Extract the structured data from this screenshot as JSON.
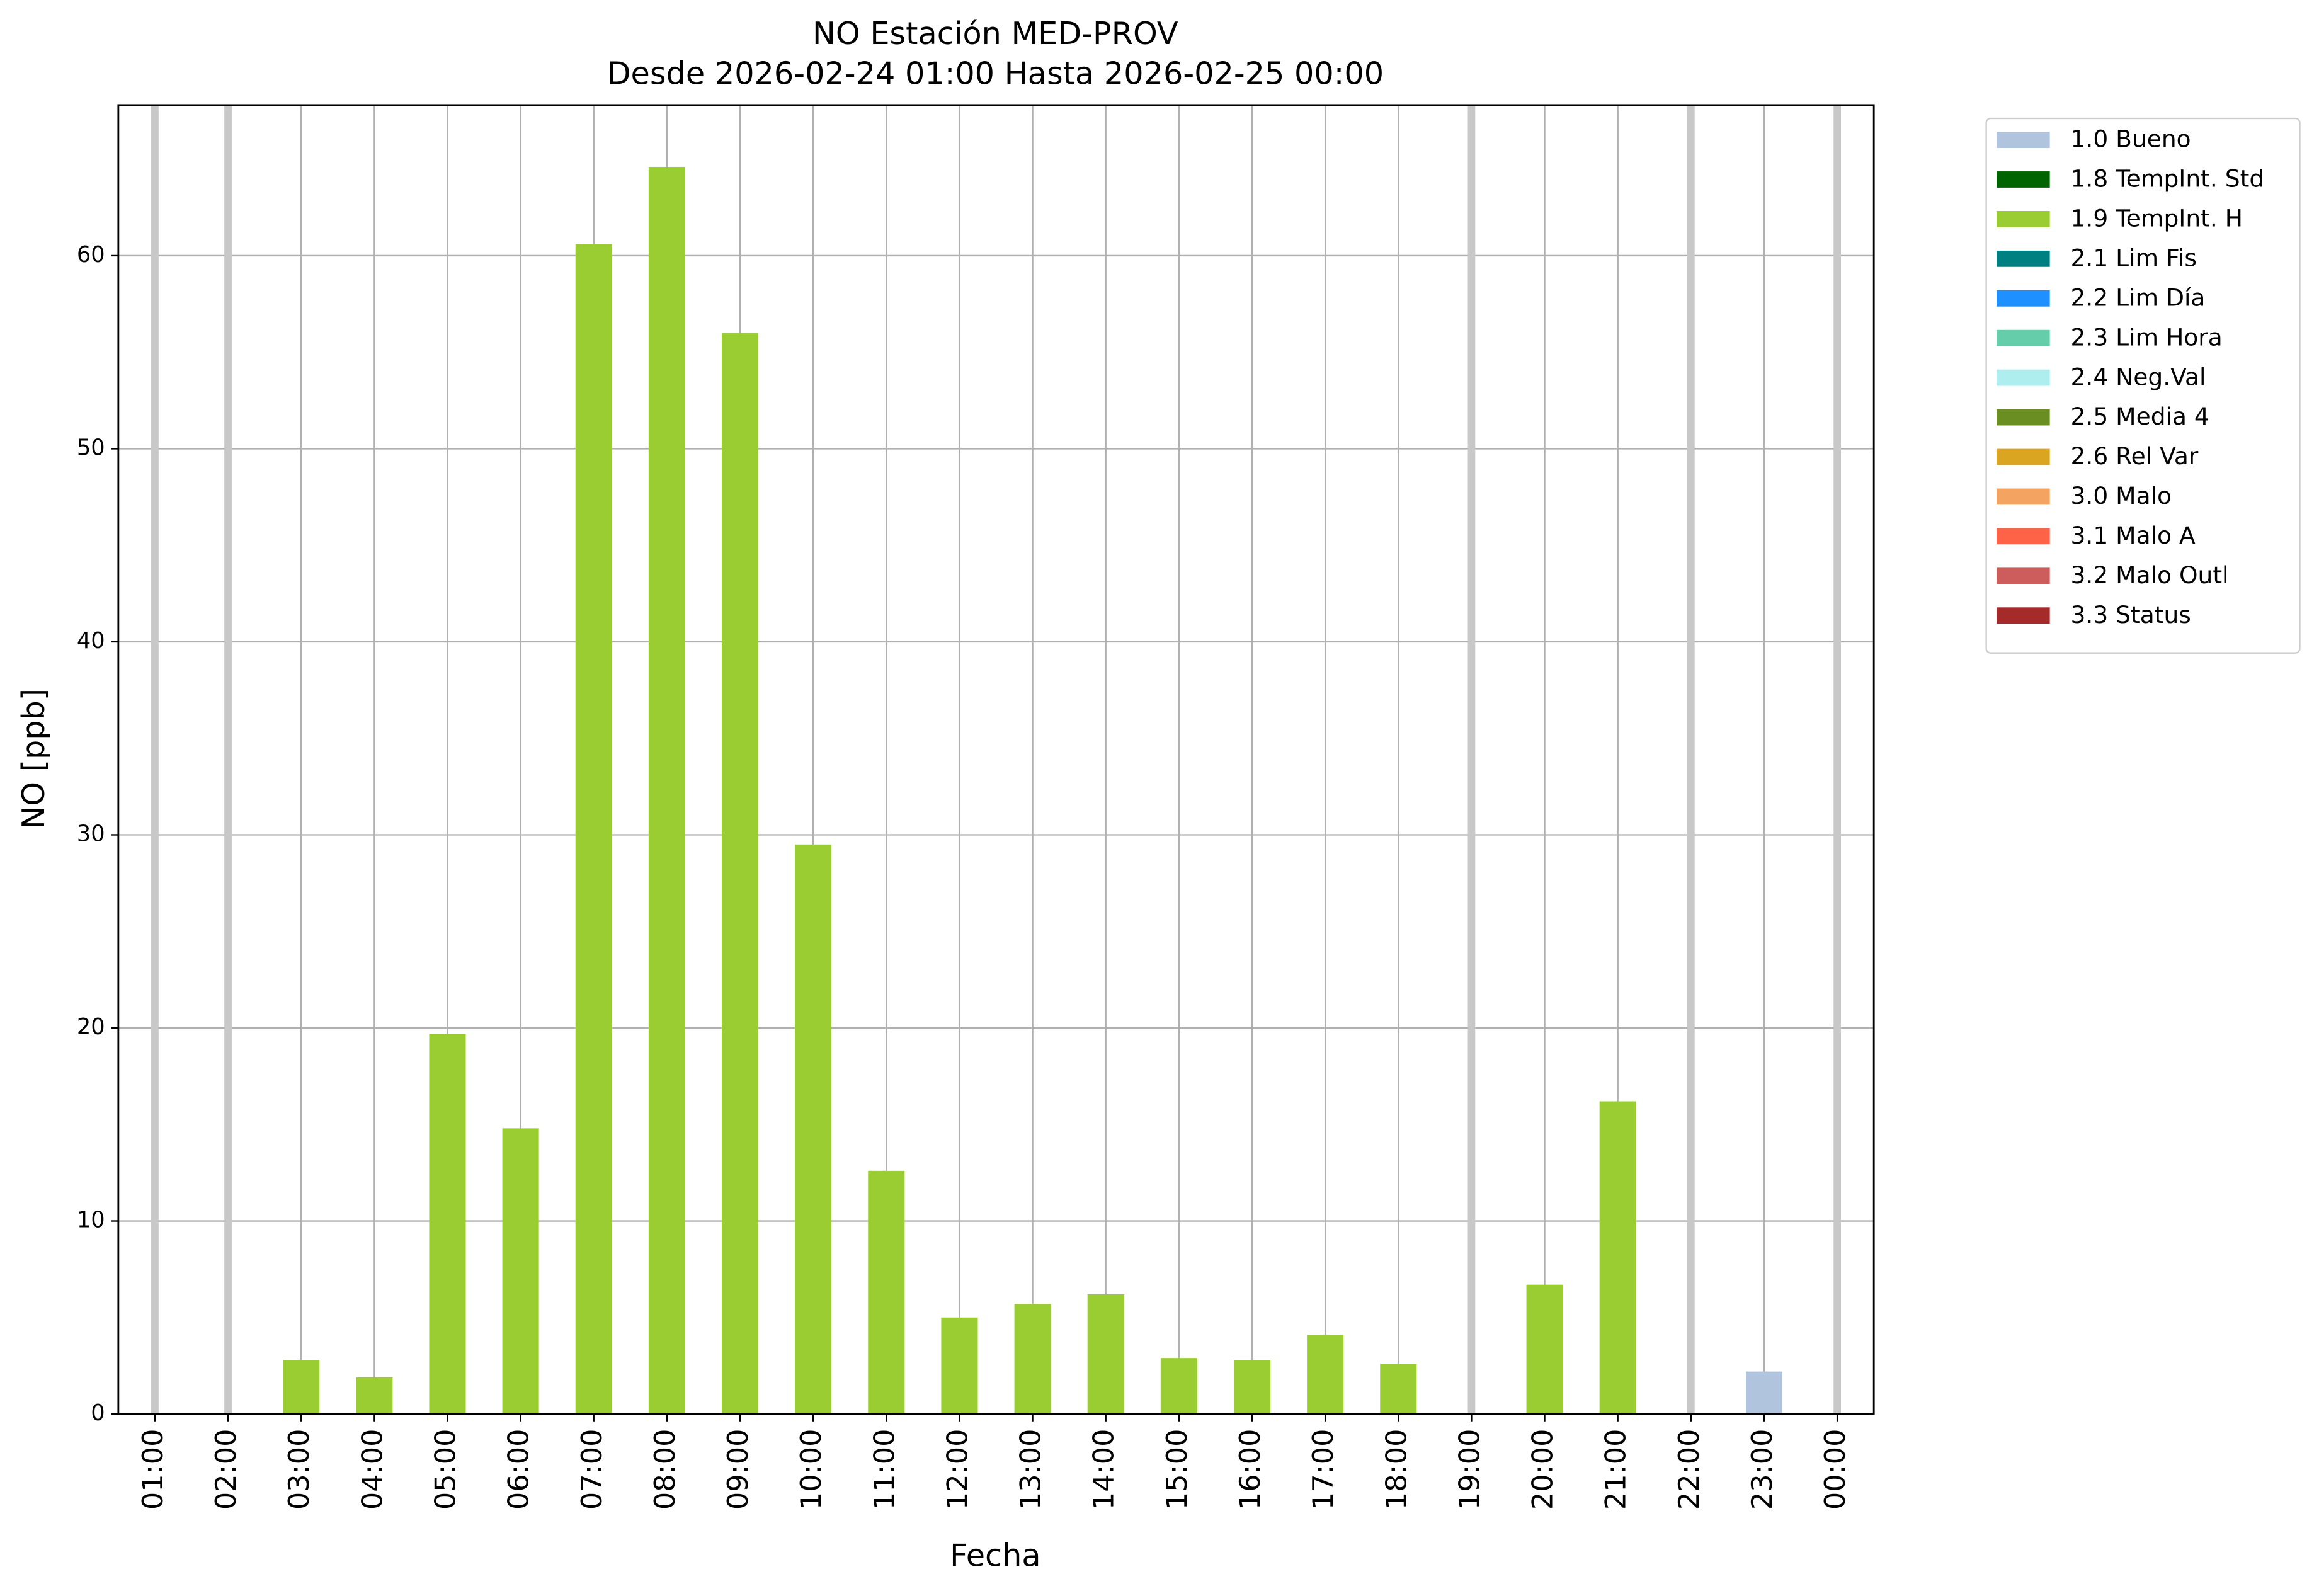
{
  "chart_data": {
    "type": "bar",
    "stacked": true,
    "title": "NO Estación MED-PROV",
    "subtitle": "Desde 2026-02-24 01:00 Hasta 2026-02-25 00:00",
    "x_label": "Fecha",
    "y_label": "NO [ppb]",
    "categories": [
      "01:00",
      "02:00",
      "03:00",
      "04:00",
      "05:00",
      "06:00",
      "07:00",
      "08:00",
      "09:00",
      "10:00",
      "11:00",
      "12:00",
      "13:00",
      "14:00",
      "15:00",
      "16:00",
      "17:00",
      "18:00",
      "19:00",
      "20:00",
      "21:00",
      "22:00",
      "23:00",
      "00:00"
    ],
    "ylim": [
      0,
      67.8
    ],
    "yticks": [
      0,
      10,
      20,
      30,
      40,
      50,
      60
    ],
    "grid": true,
    "legend": "outside-right",
    "series": [
      {
        "name": "1.0 Bueno",
        "color": "#b0c4de",
        "values": [
          null,
          null,
          null,
          null,
          null,
          null,
          null,
          null,
          null,
          null,
          null,
          null,
          null,
          null,
          null,
          null,
          null,
          null,
          null,
          null,
          null,
          null,
          2.2,
          null
        ]
      },
      {
        "name": "1.8 TempInt. Std",
        "color": "#006400",
        "values": [
          null,
          null,
          null,
          null,
          null,
          null,
          null,
          null,
          null,
          null,
          null,
          null,
          null,
          null,
          null,
          null,
          null,
          null,
          null,
          null,
          null,
          null,
          null,
          null
        ]
      },
      {
        "name": "1.9 TempInt. H",
        "color": "#9acd32",
        "values": [
          null,
          null,
          2.8,
          1.9,
          19.7,
          14.8,
          60.6,
          64.6,
          56.0,
          29.5,
          12.6,
          5.0,
          5.7,
          6.2,
          2.9,
          2.8,
          4.1,
          2.6,
          null,
          6.7,
          16.2,
          null,
          null,
          null
        ]
      },
      {
        "name": "2.1 Lim Fis",
        "color": "#008080",
        "values": [
          null,
          null,
          null,
          null,
          null,
          null,
          null,
          null,
          null,
          null,
          null,
          null,
          null,
          null,
          null,
          null,
          null,
          null,
          null,
          null,
          null,
          null,
          null,
          null
        ]
      },
      {
        "name": "2.2 Lim Día",
        "color": "#1e90ff",
        "values": [
          null,
          null,
          null,
          null,
          null,
          null,
          null,
          null,
          null,
          null,
          null,
          null,
          null,
          null,
          null,
          null,
          null,
          null,
          null,
          null,
          null,
          null,
          null,
          null
        ]
      },
      {
        "name": "2.3 Lim Hora",
        "color": "#66cdaa",
        "values": [
          null,
          null,
          null,
          null,
          null,
          null,
          null,
          null,
          null,
          null,
          null,
          null,
          null,
          null,
          null,
          null,
          null,
          null,
          null,
          null,
          null,
          null,
          null,
          null
        ]
      },
      {
        "name": "2.4 Neg.Val",
        "color": "#afeeee",
        "values": [
          null,
          null,
          null,
          null,
          null,
          null,
          null,
          null,
          null,
          null,
          null,
          null,
          null,
          null,
          null,
          null,
          null,
          null,
          null,
          null,
          null,
          null,
          null,
          null
        ]
      },
      {
        "name": "2.5 Media 4",
        "color": "#6b8e23",
        "values": [
          null,
          null,
          null,
          null,
          null,
          null,
          null,
          null,
          null,
          null,
          null,
          null,
          null,
          null,
          null,
          null,
          null,
          null,
          null,
          null,
          null,
          null,
          null,
          null
        ]
      },
      {
        "name": "2.6 Rel Var",
        "color": "#daa520",
        "values": [
          null,
          null,
          null,
          null,
          null,
          null,
          null,
          null,
          null,
          null,
          null,
          null,
          null,
          null,
          null,
          null,
          null,
          null,
          null,
          null,
          null,
          null,
          null,
          null
        ]
      },
      {
        "name": "3.0 Malo",
        "color": "#f4a460",
        "values": [
          null,
          null,
          null,
          null,
          null,
          null,
          null,
          null,
          null,
          null,
          null,
          null,
          null,
          null,
          null,
          null,
          null,
          null,
          null,
          null,
          null,
          null,
          null,
          null
        ]
      },
      {
        "name": "3.1 Malo A",
        "color": "#ff6347",
        "values": [
          null,
          null,
          null,
          null,
          null,
          null,
          null,
          null,
          null,
          null,
          null,
          null,
          null,
          null,
          null,
          null,
          null,
          null,
          null,
          null,
          null,
          null,
          null,
          null
        ]
      },
      {
        "name": "3.2 Malo Outl",
        "color": "#cd5c5c",
        "values": [
          null,
          null,
          null,
          null,
          null,
          null,
          null,
          null,
          null,
          null,
          null,
          null,
          null,
          null,
          null,
          null,
          null,
          null,
          null,
          null,
          null,
          null,
          null,
          null
        ]
      },
      {
        "name": "3.3 Status",
        "color": "#a52a2a",
        "values": [
          null,
          null,
          null,
          null,
          null,
          null,
          null,
          null,
          null,
          null,
          null,
          null,
          null,
          null,
          null,
          null,
          null,
          null,
          null,
          null,
          null,
          null,
          null,
          null
        ]
      }
    ]
  }
}
